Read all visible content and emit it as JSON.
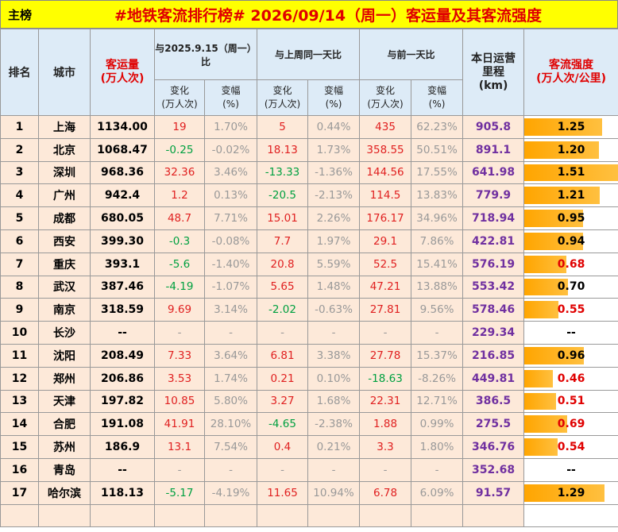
{
  "header": {
    "label": "主榜",
    "title": "#地铁客流排行榜# 2026/09/14（周一）客运量及其客流强度"
  },
  "table": {
    "head": {
      "rank": "排名",
      "city": "城市",
      "volume": [
        "客运量",
        "(万人次)"
      ],
      "group1": "与2025.9.15（周一）比",
      "group2": "与上周同一天比",
      "group3": "与前一天比",
      "mileage": [
        "本日运营",
        "里程",
        "(km)"
      ],
      "intensity": [
        "客流强度",
        "(万人次/公里)"
      ],
      "change": [
        "变化",
        "(万人次)"
      ],
      "rate": [
        "变幅",
        "(%)"
      ]
    },
    "rows": [
      [
        "1",
        "上海",
        "1134.00",
        "19",
        "1.70%",
        "5",
        "0.44%",
        "435",
        "62.23%",
        "905.8",
        "1.25"
      ],
      [
        "2",
        "北京",
        "1068.47",
        "-0.25",
        "-0.02%",
        "18.13",
        "1.73%",
        "358.55",
        "50.51%",
        "891.1",
        "1.20"
      ],
      [
        "3",
        "深圳",
        "968.36",
        "32.36",
        "3.46%",
        "-13.33",
        "-1.36%",
        "144.56",
        "17.55%",
        "641.98",
        "1.51"
      ],
      [
        "4",
        "广州",
        "942.4",
        "1.2",
        "0.13%",
        "-20.5",
        "-2.13%",
        "114.5",
        "13.83%",
        "779.9",
        "1.21"
      ],
      [
        "5",
        "成都",
        "680.05",
        "48.7",
        "7.71%",
        "15.01",
        "2.26%",
        "176.17",
        "34.96%",
        "718.94",
        "0.95"
      ],
      [
        "6",
        "西安",
        "399.30",
        "-0.3",
        "-0.08%",
        "7.7",
        "1.97%",
        "29.1",
        "7.86%",
        "422.81",
        "0.94"
      ],
      [
        "7",
        "重庆",
        "393.1",
        "-5.6",
        "-1.40%",
        "20.8",
        "5.59%",
        "52.5",
        "15.41%",
        "576.19",
        "0.68"
      ],
      [
        "8",
        "武汉",
        "387.46",
        "-4.19",
        "-1.07%",
        "5.65",
        "1.48%",
        "47.21",
        "13.88%",
        "553.42",
        "0.70"
      ],
      [
        "9",
        "南京",
        "318.59",
        "9.69",
        "3.14%",
        "-2.02",
        "-0.63%",
        "27.81",
        "9.56%",
        "578.46",
        "0.55"
      ],
      [
        "10",
        "长沙",
        "--",
        "-",
        "-",
        "-",
        "-",
        "-",
        "-",
        "229.34",
        "--"
      ],
      [
        "11",
        "沈阳",
        "208.49",
        "7.33",
        "3.64%",
        "6.81",
        "3.38%",
        "27.78",
        "15.37%",
        "216.85",
        "0.96"
      ],
      [
        "12",
        "郑州",
        "206.86",
        "3.53",
        "1.74%",
        "0.21",
        "0.10%",
        "-18.63",
        "-8.26%",
        "449.81",
        "0.46"
      ],
      [
        "13",
        "天津",
        "197.82",
        "10.85",
        "5.80%",
        "3.27",
        "1.68%",
        "22.31",
        "12.71%",
        "386.5",
        "0.51"
      ],
      [
        "14",
        "合肥",
        "191.08",
        "41.91",
        "28.10%",
        "-4.65",
        "-2.38%",
        "1.88",
        "0.99%",
        "275.5",
        "0.69"
      ],
      [
        "15",
        "苏州",
        "186.9",
        "13.1",
        "7.54%",
        "0.4",
        "0.21%",
        "3.3",
        "1.80%",
        "346.76",
        "0.54"
      ],
      [
        "16",
        "青岛",
        "--",
        "-",
        "-",
        "-",
        "-",
        "-",
        "-",
        "352.68",
        "--"
      ],
      [
        "17",
        "哈尔滨",
        "118.13",
        "-5.17",
        "-4.19%",
        "11.65",
        "10.94%",
        "6.78",
        "6.09%",
        "91.57",
        "1.29"
      ]
    ]
  }
}
